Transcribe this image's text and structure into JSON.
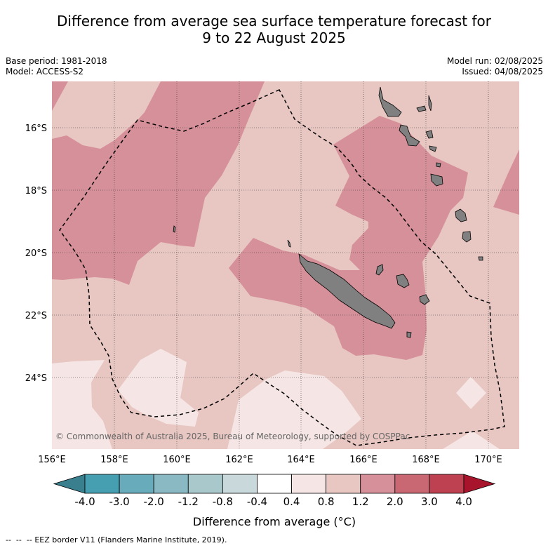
{
  "title_line1": "Difference from average sea surface temperature forecast for",
  "title_line2": "9 to 22 August 2025",
  "base_period": "Base period: 1981-2018",
  "model": "Model: ACCESS-S2",
  "model_run": "Model run: 02/08/2025",
  "issued": "Issued: 04/08/2025",
  "copyright": "© Commonwealth of Australia 2025, Bureau of Meteorology, supported by COSPPac",
  "lon_labels": [
    "156°E",
    "158°E",
    "160°E",
    "162°E",
    "164°E",
    "166°E",
    "168°E",
    "170°E"
  ],
  "lat_labels": [
    "16°S",
    "18°S",
    "20°S",
    "22°S",
    "24°S"
  ],
  "colorbar": {
    "ticks": [
      "-4.0",
      "-3.0",
      "-2.0",
      "-1.2",
      "-0.8",
      "-0.4",
      "0.4",
      "0.8",
      "1.2",
      "2.0",
      "3.0",
      "4.0"
    ],
    "colors": [
      "#459fb0",
      "#68acbb",
      "#8ab9c4",
      "#a9c8cc",
      "#c9d8da",
      "#ffffff",
      "#f5e6e5",
      "#e8c7c2",
      "#d69099",
      "#c96773",
      "#bd4151"
    ],
    "under_color": "#3a7f8d",
    "over_color": "#a8142c",
    "label": "Difference from average (°C)"
  },
  "legend_note": "EEZ border V11 (Flanders Marine Institute, 2019).",
  "colors": {
    "light_pink": "#e8c7c2",
    "mid_pink": "#d69099",
    "pale": "#f5e6e5",
    "land": "#808080"
  }
}
